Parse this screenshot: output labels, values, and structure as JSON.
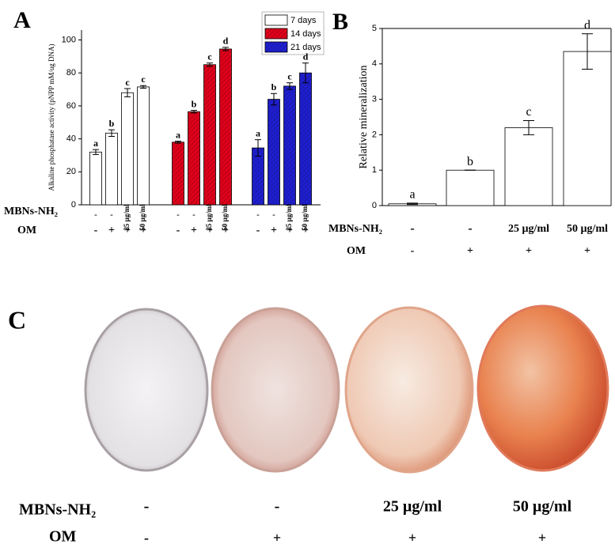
{
  "chart_data": [
    {
      "type": "bar",
      "panel": "A",
      "y_label": "Alkaline phosphatase activity (pNPP mM/ug DNA)",
      "ylim": [
        0,
        106
      ],
      "yticks": [
        0,
        20,
        40,
        60,
        80,
        100
      ],
      "categories": [
        "-",
        "-",
        "25 µg/ml",
        "50 µg/ml"
      ],
      "om": [
        "-",
        "+",
        "+",
        "+"
      ],
      "series": [
        {
          "name": "7 days",
          "color": "#ffffff",
          "hatch": false,
          "values": [
            32,
            43.5,
            68,
            71.5
          ],
          "errors": [
            1.5,
            2,
            2.5,
            0.8
          ],
          "letters": [
            "a",
            "b",
            "c",
            "c"
          ]
        },
        {
          "name": "14 days",
          "color": "#e0001b",
          "hatch": true,
          "values": [
            38,
            56.5,
            85,
            94.5
          ],
          "errors": [
            0.6,
            0.8,
            1,
            1
          ],
          "letters": [
            "a",
            "b",
            "c",
            "d"
          ]
        },
        {
          "name": "21 days",
          "color": "#1f1fd0",
          "hatch": true,
          "values": [
            34.5,
            64,
            72,
            80
          ],
          "errors": [
            5,
            3.5,
            2,
            6
          ],
          "letters": [
            "a",
            "b",
            "c",
            "d"
          ]
        }
      ]
    },
    {
      "type": "bar",
      "panel": "B",
      "y_label": "Relative mineralization",
      "ylim": [
        0,
        5
      ],
      "yticks": [
        0,
        1,
        2,
        3,
        4,
        5
      ],
      "categories": [
        "-",
        "-",
        "25 µg/ml",
        "50 µg/ml"
      ],
      "om": [
        "-",
        "+",
        "+",
        "+"
      ],
      "color": "#ffffff",
      "values": [
        0.05,
        1.0,
        2.2,
        4.35
      ],
      "errors": [
        0.02,
        0,
        0.2,
        0.5
      ],
      "letters": [
        "a",
        "b",
        "c",
        "d"
      ]
    }
  ],
  "row_labels": {
    "mbns": "MBNs-NH₂",
    "om": "OM"
  },
  "photos": {
    "panel": "C",
    "categories": [
      "-",
      "-",
      "25 µg/ml",
      "50 µg/ml"
    ],
    "om": [
      "-",
      "+",
      "+",
      "+"
    ]
  }
}
